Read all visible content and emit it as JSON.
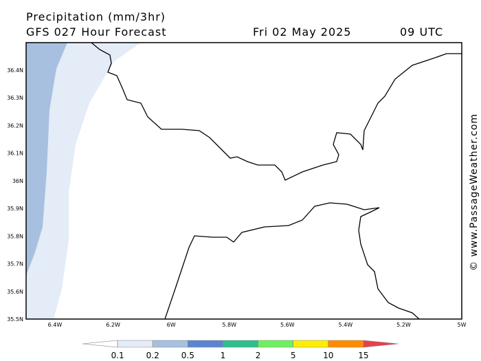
{
  "header": {
    "title": "Precipitation (mm/3hr)",
    "subtitle": "GFS 027 Hour Forecast",
    "date": "Fri 02 May 2025",
    "time": "09 UTC"
  },
  "watermark": "© www.PassageWeather.com",
  "map": {
    "lat_labels": [
      "36.4N",
      "36.3N",
      "36.2N",
      "36.1N",
      "36N",
      "35.9N",
      "35.8N",
      "35.7N",
      "35.6N",
      "35.5N"
    ],
    "lon_labels": [
      "6.4W",
      "6.2W",
      "6W",
      "5.8W",
      "5.6W",
      "5.4W",
      "5.2W",
      "5W"
    ]
  },
  "legend": {
    "labels": [
      "0.1",
      "0.2",
      "0.5",
      "1",
      "2",
      "5",
      "10",
      "15"
    ],
    "colors": [
      "#ffffff",
      "#e3ecf7",
      "#a7c0e0",
      "#5b86cf",
      "#2ebf8f",
      "#6ef060",
      "#ffee00",
      "#ff8c00",
      "#e8404a"
    ]
  }
}
